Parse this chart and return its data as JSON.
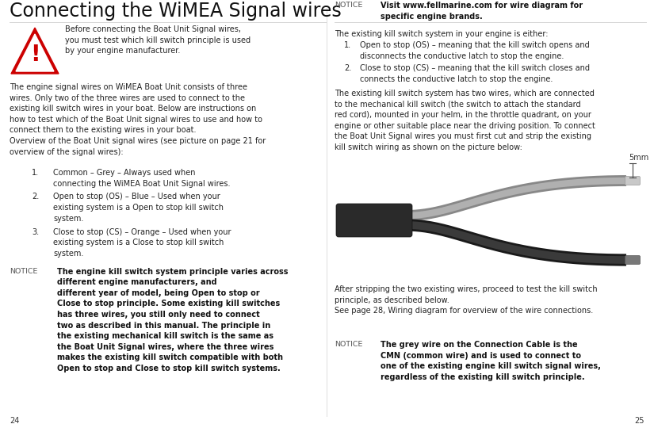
{
  "title": "Connecting the WiMEA Signal wires",
  "bg_color": "#ffffff",
  "page_numbers": [
    "24",
    "25"
  ],
  "left_col": {
    "warning_text": "Before connecting the Boat Unit Signal wires,\nyou must test which kill switch principle is used\nby your engine manufacturer.",
    "body1": "The engine signal wires on WiMEA Boat Unit consists of three\nwires. Only two of the three wires are used to connect to the\nexisting kill switch wires in your boat. Below are instructions on\nhow to test which of the Boat Unit signal wires to use and how to\nconnect them to the existing wires in your boat.\nOverview of the Boat Unit signal wires (see picture on page 21 for\noverview of the signal wires):",
    "list_items": [
      "Common – Grey – Always used when\nconnecting the WiMEA Boat Unit Signal wires.",
      "Open to stop (OS) – Blue – Used when your\nexisting system is a Open to stop kill switch\nsystem.",
      "Close to stop (CS) – Orange – Used when your\nexisting system is a Close to stop kill switch\nsystem."
    ],
    "notice_label": "NOTICE",
    "notice_body": "The engine kill switch system principle varies across\ndifferent engine manufacturers, and\ndifferent year of model, being Open to stop or\nClose to stop principle. Some existing kill switches\nhas three wires, you still only need to connect\ntwo as described in this manual. The principle in\nthe existing mechanical kill switch is the same as\nthe Boat Unit Signal wires, where the three wires\nmakes the existing kill switch compatible with both\nOpen to stop and Close to stop kill switch systems."
  },
  "right_col": {
    "notice1_label": "NOTICE",
    "notice1_body": "Visit www.fellmarine.com for wire diagram for\nspecific engine brands.",
    "body2": "The existing kill switch system in your engine is either:",
    "list2_items": [
      [
        "1.",
        "Open to stop (OS) – meaning that the kill switch opens and\ndisconnects the conductive latch to stop the engine."
      ],
      [
        "2.",
        "Close to stop (CS) – meaning that the kill switch closes and\nconnects the conductive latch to stop the engine."
      ]
    ],
    "body3": "The existing kill switch system has two wires, which are connected\nto the mechanical kill switch (the switch to attach the standard\nred cord), mounted in your helm, in the throttle quadrant, on your\nengine or other suitable place near the driving position. To connect\nthe Boat Unit Signal wires you must first cut and strip the existing\nkill switch wiring as shown on the picture below:",
    "wire_label": "5mm",
    "body4": "After stripping the two existing wires, proceed to test the kill switch\nprinciple, as described below.\nSee page 28, Wiring diagram for overview of the wire connections.",
    "notice2_label": "NOTICE",
    "notice2_body": "The grey wire on the Connection Cable is the\nCMN (common wire) and is used to connect to\none of the existing engine kill switch signal wires,\nregardless of the existing kill switch principle."
  },
  "wire_diagram": {
    "cable_color": "#2a2a2a",
    "grey_wire_outer": "#888888",
    "grey_wire_inner": "#b0b0b0",
    "black_wire_outer": "#1a1a1a",
    "black_wire_inner": "#3a3a3a",
    "tip_grey_color": "#c8c8c8",
    "tip_black_color": "#787878"
  }
}
